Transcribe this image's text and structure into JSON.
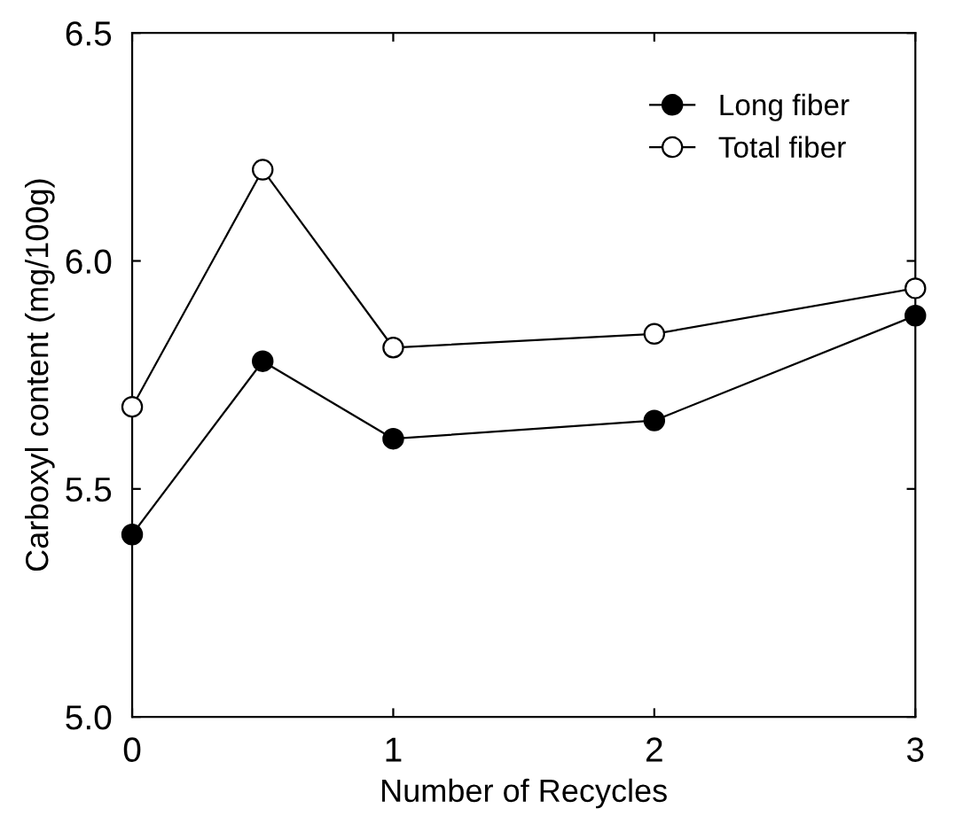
{
  "chart_data": {
    "type": "line",
    "xlabel": "Number of Recycles",
    "ylabel": "Carboxyl content (mg/100g)",
    "xlim": [
      0,
      3
    ],
    "xticks": [
      0,
      1,
      2,
      3
    ],
    "ylim": [
      5.0,
      6.5
    ],
    "yticks": [
      {
        "value": 5.0,
        "label": "5.0"
      },
      {
        "value": 5.5,
        "label": "5.5"
      },
      {
        "value": 6.0,
        "label": "6.0"
      },
      {
        "value": 6.5,
        "label": "6.5"
      }
    ],
    "x": [
      0,
      0.5,
      1,
      2,
      3
    ],
    "marker": "circle",
    "line_style": "solid",
    "grid": false,
    "legend": "top right",
    "series": [
      {
        "name": "Long fiber",
        "color": "#000000",
        "values": [
          5.4,
          5.78,
          5.61,
          5.65,
          5.88
        ]
      },
      {
        "name": "Total fiber",
        "color": "#ffffff",
        "values": [
          5.68,
          6.2,
          5.81,
          5.84,
          5.94
        ]
      }
    ]
  }
}
